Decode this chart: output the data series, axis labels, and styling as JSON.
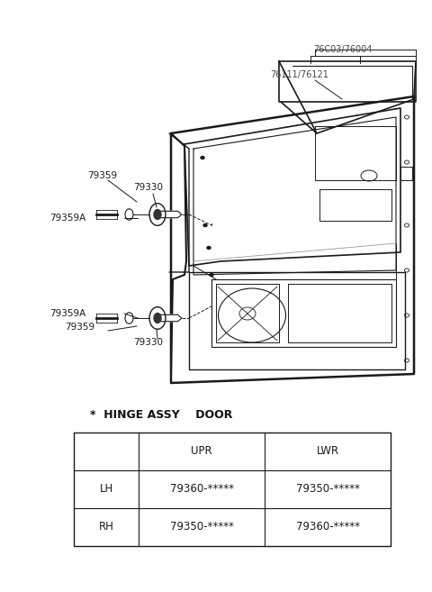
{
  "bg_color": "#ffffff",
  "line_color": "#1a1a1a",
  "gray_color": "#999999",
  "title_text": "*  HINGE ASSY    DOOR",
  "table": {
    "headers": [
      "",
      "UPR",
      "LWR"
    ],
    "rows": [
      [
        "LH",
        "79360-*****",
        "79350-*****"
      ],
      [
        "RH",
        "79350-*****",
        "79360-*****"
      ]
    ]
  },
  "labels": {
    "76C03_76004": "76C03/76004",
    "76111_76121": "76111/76121",
    "79359_top": "79359",
    "79330_top": "79330",
    "79359A_top": "79359A",
    "79359A_bot": "79359A",
    "79359_bot": "79359",
    "79330_bot": "79330"
  },
  "figsize": [
    4.8,
    6.57
  ],
  "dpi": 100
}
